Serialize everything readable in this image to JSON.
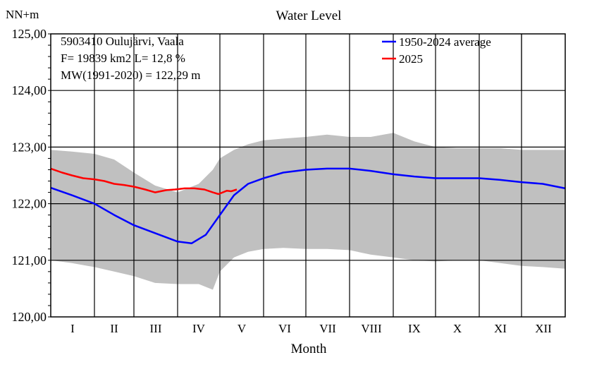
{
  "chart_data": {
    "type": "line",
    "title": "Water Level",
    "ylabel": "NN+m",
    "xlabel": "Month",
    "ylim": [
      120,
      125
    ],
    "y_ticks": [
      "120,00",
      "121,00",
      "122,00",
      "123,00",
      "124,00",
      "125,00"
    ],
    "categories": [
      "I",
      "II",
      "III",
      "IV",
      "V",
      "VI",
      "VII",
      "VIII",
      "IX",
      "X",
      "XI",
      "XII"
    ],
    "info_lines": [
      "5903410 Oulujärvi, Vaala",
      "F=  19839 km2 L=  12,8 %",
      "MW(1991-2020) = 122,29 m"
    ],
    "legend_position": "top-right",
    "grid": true,
    "series": [
      {
        "name": "1950-2024 average",
        "color": "#0000ff",
        "x": [
          0,
          15,
          31,
          45,
          59,
          74,
          90,
          100,
          110,
          120,
          130,
          140,
          151,
          165,
          181,
          196,
          212,
          227,
          243,
          258,
          273,
          288,
          304,
          319,
          334,
          349,
          365
        ],
        "values": [
          122.28,
          122.15,
          122.0,
          121.8,
          121.62,
          121.48,
          121.33,
          121.3,
          121.45,
          121.8,
          122.15,
          122.35,
          122.45,
          122.55,
          122.6,
          122.62,
          122.62,
          122.58,
          122.52,
          122.48,
          122.45,
          122.45,
          122.45,
          122.42,
          122.38,
          122.35,
          122.27
        ]
      },
      {
        "name": "2025",
        "color": "#ff0000",
        "x": [
          0,
          8,
          15,
          23,
          31,
          38,
          45,
          52,
          59,
          67,
          74,
          82,
          88,
          95,
          102,
          109,
          115,
          119,
          125,
          128,
          132
        ],
        "values": [
          122.62,
          122.55,
          122.5,
          122.45,
          122.43,
          122.4,
          122.35,
          122.33,
          122.3,
          122.25,
          122.2,
          122.24,
          122.25,
          122.27,
          122.27,
          122.25,
          122.2,
          122.17,
          122.23,
          122.22,
          122.25
        ]
      },
      {
        "name": "",
        "type": "range-band",
        "color": "#c0c0c0",
        "x": [
          0,
          15,
          31,
          45,
          59,
          74,
          90,
          105,
          115,
          120,
          130,
          140,
          151,
          165,
          181,
          196,
          212,
          227,
          243,
          258,
          273,
          288,
          304,
          319,
          334,
          349,
          365
        ],
        "max": [
          122.95,
          122.92,
          122.88,
          122.78,
          122.55,
          122.32,
          122.2,
          122.35,
          122.6,
          122.8,
          122.95,
          123.05,
          123.12,
          123.15,
          123.18,
          123.22,
          123.18,
          123.18,
          123.25,
          123.1,
          123.0,
          122.98,
          122.98,
          122.98,
          122.95,
          122.95,
          122.95
        ],
        "min": [
          121.0,
          120.95,
          120.88,
          120.8,
          120.72,
          120.6,
          120.58,
          120.58,
          120.48,
          120.8,
          121.05,
          121.15,
          121.2,
          121.22,
          121.2,
          121.2,
          121.18,
          121.1,
          121.05,
          121.0,
          120.98,
          121.0,
          121.0,
          120.95,
          120.9,
          120.88,
          120.85
        ]
      }
    ]
  }
}
